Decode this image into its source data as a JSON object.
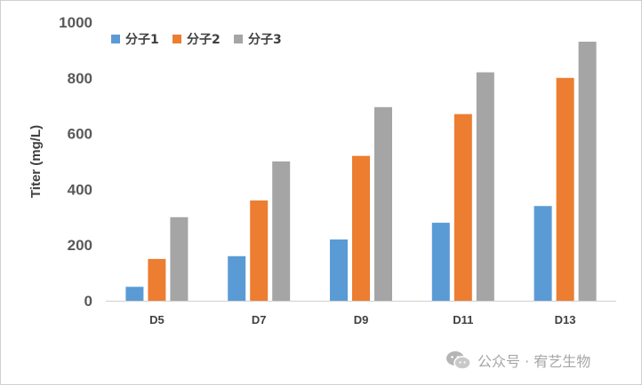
{
  "chart_data": {
    "type": "bar",
    "categories": [
      "D5",
      "D7",
      "D9",
      "D11",
      "D13"
    ],
    "series": [
      {
        "name": "分子1",
        "color": "#5B9BD5",
        "values": [
          50,
          160,
          220,
          280,
          340
        ]
      },
      {
        "name": "分子2",
        "color": "#ED7D31",
        "values": [
          150,
          360,
          520,
          670,
          800
        ]
      },
      {
        "name": "分子3",
        "color": "#A5A5A5",
        "values": [
          300,
          500,
          695,
          820,
          930
        ]
      }
    ],
    "title": "",
    "xlabel": "",
    "ylabel": "Titer (mg/L)",
    "ylim": [
      0,
      1000
    ],
    "yticks": [
      0,
      200,
      400,
      600,
      800,
      1000
    ],
    "legend_position": "top-left",
    "grid": false
  },
  "watermark": {
    "text": "公众号 · 宥艺生物",
    "icon": "wechat-icon"
  }
}
